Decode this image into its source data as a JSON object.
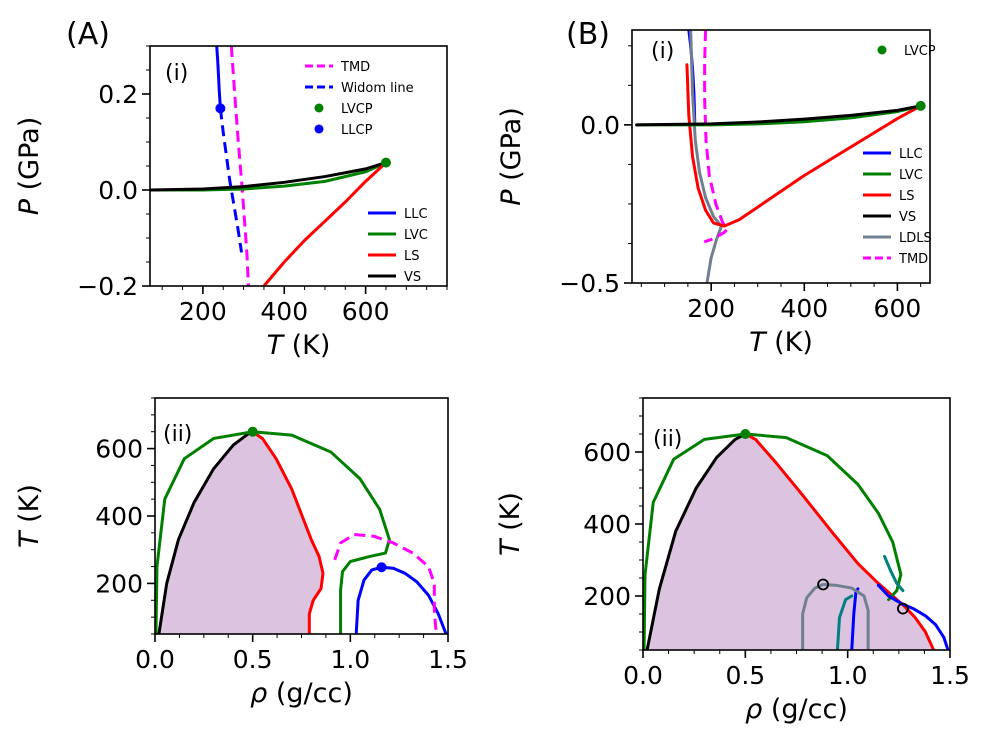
{
  "chart_data": [
    {
      "panel": "A-i",
      "type": "line",
      "panel_label": "(A)",
      "subpanel_label": "(i)",
      "xlabel_var": "T",
      "xlabel_unit": " (K)",
      "ylabel_var": "P",
      "ylabel_unit": " (GPa)",
      "xlim": [
        70,
        800
      ],
      "ylim": [
        -0.2,
        0.3
      ],
      "xticks": [
        200,
        400,
        600
      ],
      "xtick_labels": [
        "200",
        "400",
        "600"
      ],
      "yticks": [
        -0.2,
        0.0,
        0.2
      ],
      "ytick_labels": [
        "−0.2",
        "0.0",
        "0.2"
      ],
      "legend_top": [
        {
          "label": "TMD",
          "color": "#ff00ff",
          "style": "dashed"
        },
        {
          "label": "Widom line",
          "color": "#0000ff",
          "style": "dashed"
        },
        {
          "label": "LVCP",
          "color": "#008000",
          "style": "marker"
        },
        {
          "label": "LLCP",
          "color": "#0000ff",
          "style": "marker"
        }
      ],
      "legend_bottom": [
        {
          "label": "LLC",
          "color": "#0000ff",
          "style": "solid"
        },
        {
          "label": "LVC",
          "color": "#008000",
          "style": "solid"
        },
        {
          "label": "LS",
          "color": "#ff0000",
          "style": "solid"
        },
        {
          "label": "VS",
          "color": "#000000",
          "style": "solid"
        }
      ],
      "series": [
        {
          "name": "LLC",
          "color": "#0000ff",
          "style": "solid",
          "x": [
            243,
            240,
            238,
            236,
            234
          ],
          "y": [
            0.17,
            0.21,
            0.245,
            0.275,
            0.3
          ]
        },
        {
          "name": "Widom line",
          "color": "#0000ff",
          "style": "dashed",
          "x": [
            243,
            250,
            258,
            266,
            276,
            286,
            295
          ],
          "y": [
            0.17,
            0.12,
            0.07,
            0.02,
            -0.03,
            -0.08,
            -0.13
          ]
        },
        {
          "name": "TMD",
          "color": "#ff00ff",
          "style": "dashed",
          "x": [
            270,
            274,
            280,
            287,
            295,
            302,
            308,
            312
          ],
          "y": [
            0.3,
            0.25,
            0.18,
            0.1,
            0.02,
            -0.06,
            -0.13,
            -0.2
          ]
        },
        {
          "name": "LVC",
          "color": "#008000",
          "style": "solid",
          "x": [
            70,
            200,
            300,
            400,
            500,
            600,
            650
          ],
          "y": [
            0.0,
            0.0,
            0.002,
            0.008,
            0.018,
            0.038,
            0.057
          ]
        },
        {
          "name": "VS",
          "color": "#000000",
          "style": "solid",
          "x": [
            70,
            200,
            300,
            400,
            500,
            600,
            650
          ],
          "y": [
            0.0,
            0.002,
            0.007,
            0.016,
            0.028,
            0.044,
            0.057
          ]
        },
        {
          "name": "LS",
          "color": "#ff0000",
          "style": "solid",
          "x": [
            350,
            400,
            450,
            500,
            550,
            600,
            650
          ],
          "y": [
            -0.2,
            -0.15,
            -0.105,
            -0.065,
            -0.025,
            0.018,
            0.057
          ]
        }
      ],
      "points": [
        {
          "name": "LVCP",
          "color": "#008000",
          "x": 650,
          "y": 0.057
        },
        {
          "name": "LLCP",
          "color": "#0000ff",
          "x": 243,
          "y": 0.17
        }
      ]
    },
    {
      "panel": "B-i",
      "type": "line",
      "panel_label": "(B)",
      "subpanel_label": "(i)",
      "xlabel_var": "T",
      "xlabel_unit": " (K)",
      "ylabel_var": "P",
      "ylabel_unit": " (GPa)",
      "xlim": [
        30,
        670
      ],
      "ylim": [
        -0.5,
        0.3
      ],
      "xticks": [
        200,
        400,
        600
      ],
      "xtick_labels": [
        "200",
        "400",
        "600"
      ],
      "yticks": [
        -0.5,
        0.0
      ],
      "ytick_labels": [
        "−0.5",
        "0.0"
      ],
      "legend_top": [
        {
          "label": "LVCP",
          "color": "#008000",
          "style": "marker"
        }
      ],
      "legend_bottom": [
        {
          "label": "LLC",
          "color": "#0000ff",
          "style": "solid"
        },
        {
          "label": "LVC",
          "color": "#008000",
          "style": "solid"
        },
        {
          "label": "LS",
          "color": "#ff0000",
          "style": "solid"
        },
        {
          "label": "VS",
          "color": "#000000",
          "style": "solid"
        },
        {
          "label": "LDLS",
          "color": "#708090",
          "style": "solid"
        },
        {
          "label": "TMD",
          "color": "#ff00ff",
          "style": "dashed"
        }
      ],
      "series": [
        {
          "name": "LLC",
          "color": "#0000ff",
          "style": "solid",
          "x": [
            165,
            163,
            160,
            156,
            152
          ],
          "y": [
            0.0,
            0.1,
            0.18,
            0.25,
            0.3
          ]
        },
        {
          "name": "LDLS",
          "color": "#708090",
          "style": "solid",
          "x": [
            156,
            160,
            166,
            175,
            188,
            205,
            222,
            212,
            200,
            191
          ],
          "y": [
            0.3,
            0.1,
            -0.05,
            -0.15,
            -0.23,
            -0.29,
            -0.32,
            -0.36,
            -0.42,
            -0.5
          ]
        },
        {
          "name": "TMD",
          "color": "#ff00ff",
          "style": "dashed",
          "x": [
            188,
            186,
            186,
            189,
            196,
            210,
            225,
            235,
            228,
            205,
            185
          ],
          "y": [
            0.3,
            0.2,
            0.08,
            -0.05,
            -0.16,
            -0.25,
            -0.31,
            -0.33,
            -0.34,
            -0.36,
            -0.37
          ]
        },
        {
          "name": "LS",
          "color": "#ff0000",
          "style": "solid",
          "x": [
            148,
            152,
            160,
            172,
            188,
            205,
            228,
            260,
            320,
            400,
            500,
            600,
            650
          ],
          "y": [
            0.19,
            0.03,
            -0.1,
            -0.2,
            -0.27,
            -0.31,
            -0.32,
            -0.3,
            -0.24,
            -0.16,
            -0.07,
            0.02,
            0.06
          ]
        },
        {
          "name": "LVC",
          "color": "#008000",
          "style": "solid",
          "x": [
            40,
            200,
            300,
            400,
            500,
            600,
            650
          ],
          "y": [
            0.0,
            0.0,
            0.003,
            0.01,
            0.022,
            0.042,
            0.06
          ]
        },
        {
          "name": "VS",
          "color": "#000000",
          "style": "solid",
          "x": [
            40,
            200,
            300,
            400,
            500,
            600,
            650
          ],
          "y": [
            0.0,
            0.003,
            0.009,
            0.018,
            0.03,
            0.046,
            0.06
          ]
        }
      ],
      "points": [
        {
          "name": "LVCP",
          "color": "#008000",
          "x": 650,
          "y": 0.06
        }
      ]
    },
    {
      "panel": "A-ii",
      "type": "line",
      "subpanel_label": "(ii)",
      "xlabel_var": "ρ",
      "xlabel_unit": " (g/cc)",
      "ylabel_var": "T",
      "ylabel_unit": " (K)",
      "xlim": [
        0.0,
        1.5
      ],
      "ylim": [
        50,
        750
      ],
      "xticks": [
        0.0,
        0.5,
        1.0,
        1.5
      ],
      "xtick_labels": [
        "0.0",
        "0.5",
        "1.0",
        "1.5"
      ],
      "yticks": [
        200,
        400,
        600
      ],
      "ytick_labels": [
        "200",
        "400",
        "600"
      ],
      "shade": {
        "color": "#dcc4e0",
        "description": "spinodal region bounded by VS and LS",
        "x": [
          0.02,
          0.06,
          0.12,
          0.2,
          0.3,
          0.4,
          0.48,
          0.5,
          0.55,
          0.62,
          0.7,
          0.76,
          0.8,
          0.84,
          0.86,
          0.85,
          0.81,
          0.79,
          0.79,
          0.02
        ],
        "y": [
          50,
          200,
          330,
          440,
          540,
          610,
          645,
          650,
          630,
          570,
          480,
          390,
          330,
          280,
          230,
          185,
          150,
          110,
          50,
          50
        ]
      },
      "series": [
        {
          "name": "VS",
          "color": "#000000",
          "style": "solid",
          "x": [
            0.02,
            0.06,
            0.12,
            0.2,
            0.3,
            0.4,
            0.48,
            0.5
          ],
          "y": [
            50,
            200,
            330,
            440,
            540,
            610,
            645,
            650
          ]
        },
        {
          "name": "LS",
          "color": "#ff0000",
          "style": "solid",
          "x": [
            0.5,
            0.55,
            0.62,
            0.7,
            0.76,
            0.8,
            0.84,
            0.86,
            0.85,
            0.81,
            0.79,
            0.79
          ],
          "y": [
            650,
            630,
            570,
            480,
            390,
            330,
            280,
            230,
            185,
            150,
            110,
            50
          ]
        },
        {
          "name": "LVC",
          "color": "#008000",
          "style": "solid",
          "x": [
            0.005,
            0.01,
            0.05,
            0.15,
            0.3,
            0.5,
            0.7,
            0.9,
            1.05,
            1.15,
            1.2,
            1.18,
            1.1,
            1.0,
            0.96,
            0.95,
            0.95
          ],
          "y": [
            50,
            250,
            450,
            570,
            630,
            650,
            640,
            590,
            510,
            420,
            330,
            290,
            280,
            265,
            235,
            180,
            50
          ]
        },
        {
          "name": "LLC",
          "color": "#0000ff",
          "style": "solid",
          "x": [
            1.03,
            1.04,
            1.07,
            1.11,
            1.16,
            1.22,
            1.28,
            1.34,
            1.4,
            1.45,
            1.49
          ],
          "y": [
            50,
            150,
            210,
            240,
            248,
            245,
            230,
            205,
            165,
            110,
            50
          ]
        },
        {
          "name": "TMD",
          "color": "#ff00ff",
          "style": "dashed",
          "x": [
            0.92,
            0.95,
            1.02,
            1.12,
            1.22,
            1.32,
            1.4,
            1.43,
            1.43,
            1.44
          ],
          "y": [
            270,
            320,
            345,
            340,
            320,
            290,
            250,
            200,
            120,
            50
          ]
        }
      ],
      "points": [
        {
          "name": "LVCP",
          "color": "#008000",
          "x": 0.5,
          "y": 650
        },
        {
          "name": "LLCP",
          "color": "#0000ff",
          "x": 1.16,
          "y": 248
        }
      ]
    },
    {
      "panel": "B-ii",
      "type": "line",
      "subpanel_label": "(ii)",
      "xlabel_var": "ρ",
      "xlabel_unit": " (g/cc)",
      "ylabel_var": "T",
      "ylabel_unit": " (K)",
      "xlim": [
        0.0,
        1.5
      ],
      "ylim": [
        50,
        750
      ],
      "xticks": [
        0.0,
        0.5,
        1.0,
        1.5
      ],
      "xtick_labels": [
        "0.0",
        "0.5",
        "1.0",
        "1.5"
      ],
      "yticks": [
        200,
        400,
        600
      ],
      "ytick_labels": [
        "200",
        "400",
        "600"
      ],
      "shade": {
        "color": "#dcc4e0",
        "description": "spinodal region bounded by VS and LS",
        "x": [
          0.02,
          0.08,
          0.16,
          0.26,
          0.36,
          0.45,
          0.5,
          0.55,
          0.65,
          0.78,
          0.92,
          1.05,
          1.15,
          1.22,
          1.28,
          1.33,
          1.38,
          1.42,
          0.02
        ],
        "y": [
          50,
          220,
          380,
          500,
          585,
          635,
          650,
          635,
          570,
          480,
          380,
          290,
          235,
          200,
          170,
          140,
          100,
          50,
          50
        ]
      },
      "series": [
        {
          "name": "VS",
          "color": "#000000",
          "style": "solid",
          "x": [
            0.02,
            0.08,
            0.16,
            0.26,
            0.36,
            0.45,
            0.5
          ],
          "y": [
            50,
            220,
            380,
            500,
            585,
            635,
            650
          ]
        },
        {
          "name": "LS",
          "color": "#ff0000",
          "style": "solid",
          "x": [
            0.5,
            0.55,
            0.65,
            0.78,
            0.92,
            1.05,
            1.15,
            1.22,
            1.28,
            1.33,
            1.38,
            1.42
          ],
          "y": [
            650,
            635,
            570,
            480,
            380,
            290,
            235,
            200,
            170,
            140,
            100,
            50
          ]
        },
        {
          "name": "LVC",
          "color": "#008000",
          "style": "solid",
          "x": [
            0.005,
            0.01,
            0.05,
            0.15,
            0.3,
            0.5,
            0.7,
            0.9,
            1.05,
            1.15,
            1.22,
            1.26,
            1.24,
            1.2
          ],
          "y": [
            50,
            260,
            460,
            580,
            635,
            650,
            640,
            590,
            510,
            430,
            350,
            260,
            215,
            190
          ]
        },
        {
          "name": "LLC",
          "color": "#0000ff",
          "style": "solid",
          "x": [
            1.15,
            1.2,
            1.26,
            1.32,
            1.38,
            1.43,
            1.47,
            1.49
          ],
          "y": [
            230,
            200,
            180,
            165,
            145,
            120,
            85,
            50
          ]
        },
        {
          "name": "LLC low-density",
          "color": "#0000ff",
          "style": "solid",
          "x": [
            1.02,
            1.03,
            1.04,
            1.05
          ],
          "y": [
            50,
            150,
            210,
            220
          ]
        },
        {
          "name": "LVC inner",
          "color": "#008080",
          "style": "solid",
          "x": [
            0.95,
            0.96,
            0.99,
            1.02
          ],
          "y": [
            50,
            140,
            190,
            200
          ]
        },
        {
          "name": "LVC edge",
          "color": "#008080",
          "style": "solid",
          "x": [
            1.18,
            1.21,
            1.24,
            1.27
          ],
          "y": [
            310,
            270,
            235,
            215
          ]
        },
        {
          "name": "LDLS",
          "color": "#708090",
          "style": "solid",
          "x": [
            0.78,
            0.78,
            0.8,
            0.84,
            0.88,
            0.94,
            1.02,
            1.08,
            1.1,
            1.1
          ],
          "y": [
            50,
            150,
            195,
            222,
            232,
            230,
            222,
            200,
            160,
            50
          ]
        }
      ],
      "points": [
        {
          "name": "LVCP",
          "color": "#008000",
          "x": 0.5,
          "y": 650
        }
      ],
      "open_points": [
        {
          "name": "LDLS-cusp",
          "x": 0.88,
          "y": 232
        },
        {
          "name": "LS-cusp",
          "x": 1.27,
          "y": 165
        }
      ]
    }
  ]
}
